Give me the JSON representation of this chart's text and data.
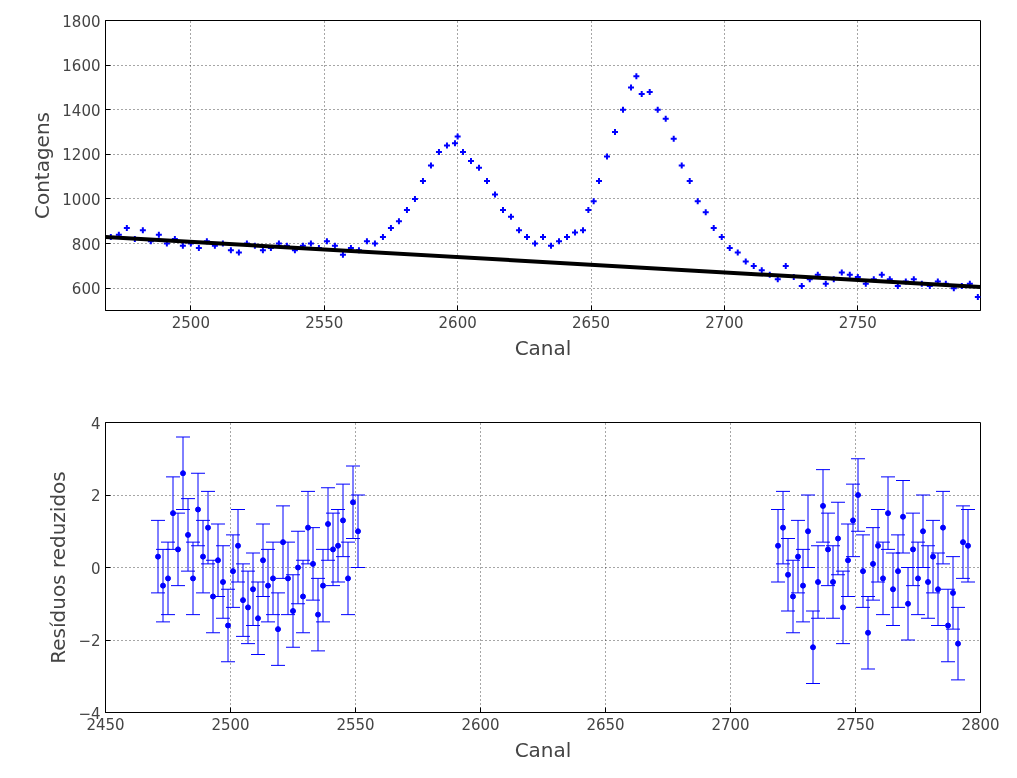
{
  "chart_data": [
    {
      "type": "scatter",
      "xlabel": "Canal",
      "ylabel": "Contagens",
      "xlim": [
        2468,
        2796
      ],
      "ylim": [
        500,
        1800
      ],
      "xticks": [
        2500,
        2550,
        2600,
        2650,
        2700,
        2750
      ],
      "yticks": [
        600,
        800,
        1000,
        1200,
        1400,
        1600,
        1800
      ],
      "grid": true,
      "marker": "cross",
      "series": [
        {
          "color": "#0000ff",
          "x": [
            2470,
            2473,
            2476,
            2479,
            2482,
            2485,
            2488,
            2491,
            2494,
            2497,
            2500,
            2503,
            2506,
            2509,
            2512,
            2515,
            2518,
            2521,
            2524,
            2527,
            2530,
            2533,
            2536,
            2539,
            2542,
            2545,
            2548,
            2551,
            2554,
            2557,
            2560,
            2563,
            2566,
            2569,
            2572,
            2575,
            2578,
            2581,
            2584,
            2587,
            2590,
            2593,
            2596,
            2599,
            2600,
            2602,
            2605,
            2608,
            2611,
            2614,
            2617,
            2620,
            2623,
            2626,
            2629,
            2632,
            2635,
            2638,
            2641,
            2644,
            2647,
            2649,
            2651,
            2653,
            2656,
            2659,
            2662,
            2665,
            2667,
            2669,
            2672,
            2675,
            2678,
            2681,
            2684,
            2687,
            2690,
            2693,
            2696,
            2699,
            2702,
            2705,
            2708,
            2711,
            2714,
            2717,
            2720,
            2723,
            2726,
            2729,
            2732,
            2735,
            2738,
            2741,
            2744,
            2747,
            2750,
            2753,
            2756,
            2759,
            2762,
            2765,
            2768,
            2771,
            2774,
            2777,
            2780,
            2783,
            2786,
            2789,
            2792,
            2795
          ],
          "values": [
            830,
            840,
            870,
            820,
            860,
            810,
            840,
            800,
            820,
            790,
            800,
            780,
            810,
            790,
            800,
            770,
            760,
            800,
            790,
            770,
            780,
            800,
            790,
            770,
            790,
            800,
            780,
            810,
            790,
            750,
            780,
            770,
            810,
            800,
            830,
            870,
            900,
            950,
            1000,
            1080,
            1150,
            1210,
            1240,
            1250,
            1280,
            1210,
            1170,
            1140,
            1080,
            1020,
            950,
            920,
            860,
            830,
            800,
            830,
            790,
            810,
            830,
            850,
            860,
            950,
            990,
            1080,
            1190,
            1300,
            1400,
            1500,
            1550,
            1470,
            1480,
            1400,
            1360,
            1270,
            1150,
            1080,
            990,
            940,
            870,
            830,
            780,
            760,
            720,
            700,
            680,
            660,
            640,
            700,
            650,
            610,
            640,
            660,
            620,
            640,
            670,
            660,
            650,
            620,
            640,
            660,
            640,
            610,
            630,
            640,
            620,
            610,
            630,
            620,
            600,
            610,
            620,
            560
          ]
        },
        {
          "type": "line",
          "marker": "none",
          "color": "#000000",
          "x": [
            2468,
            2796
          ],
          "values": [
            830,
            605
          ]
        }
      ]
    },
    {
      "type": "scatter",
      "xlabel": "Canal",
      "ylabel": "Resíduos reduzidos",
      "xlim": [
        2450,
        2800
      ],
      "ylim": [
        -4,
        4
      ],
      "xticks": [
        2450,
        2500,
        2550,
        2600,
        2650,
        2700,
        2750,
        2800
      ],
      "yticks": [
        -4,
        -2,
        0,
        2,
        4
      ],
      "grid": true,
      "marker": "circle",
      "series": [
        {
          "color": "#0000ff",
          "x": [
            2471,
            2473,
            2475,
            2477,
            2479,
            2481,
            2483,
            2485,
            2487,
            2489,
            2491,
            2493,
            2495,
            2497,
            2499,
            2501,
            2503,
            2505,
            2507,
            2509,
            2511,
            2513,
            2515,
            2517,
            2519,
            2521,
            2523,
            2525,
            2527,
            2529,
            2531,
            2533,
            2535,
            2537,
            2539,
            2541,
            2543,
            2545,
            2547,
            2549,
            2551,
            2719,
            2721,
            2723,
            2725,
            2727,
            2729,
            2731,
            2733,
            2735,
            2737,
            2739,
            2741,
            2743,
            2745,
            2747,
            2749,
            2751,
            2753,
            2755,
            2757,
            2759,
            2761,
            2763,
            2765,
            2767,
            2769,
            2771,
            2773,
            2775,
            2777,
            2779,
            2781,
            2783,
            2785,
            2787,
            2789,
            2791,
            2793,
            2795
          ],
          "values": [
            0.3,
            -0.5,
            -0.3,
            1.5,
            0.5,
            2.6,
            0.9,
            -0.3,
            1.6,
            0.3,
            1.1,
            -0.8,
            0.2,
            -0.4,
            -1.6,
            -0.1,
            0.6,
            -0.9,
            -1.1,
            -0.6,
            -1.4,
            0.2,
            -0.5,
            -0.3,
            -1.7,
            0.7,
            -0.3,
            -1.2,
            0.0,
            -0.8,
            1.1,
            0.1,
            -1.3,
            -0.5,
            1.2,
            0.5,
            0.6,
            1.3,
            -0.3,
            1.8,
            1.0,
            0.6,
            1.1,
            -0.2,
            -0.8,
            0.3,
            -0.5,
            1.0,
            -2.2,
            -0.4,
            1.7,
            0.5,
            -0.4,
            0.8,
            -1.1,
            0.2,
            1.3,
            2.0,
            -0.1,
            -1.8,
            0.1,
            0.6,
            -0.3,
            1.5,
            -0.6,
            -0.1,
            1.4,
            -1.0,
            0.5,
            -0.3,
            1.0,
            -0.4,
            0.3,
            -0.6,
            1.1,
            -1.6,
            -0.7,
            -2.1,
            0.7,
            0.6
          ],
          "errors": [
            1,
            1,
            1,
            1,
            1,
            1,
            1,
            1,
            1,
            1,
            1,
            1,
            1,
            1,
            1,
            1,
            1,
            1,
            1,
            1,
            1,
            1,
            1,
            1,
            1,
            1,
            1,
            1,
            1,
            1,
            1,
            1,
            1,
            1,
            1,
            1,
            1,
            1,
            1,
            1,
            1,
            1,
            1,
            1,
            1,
            1,
            1,
            1,
            1,
            1,
            1,
            1,
            1,
            1,
            1,
            1,
            1,
            1,
            1,
            1,
            1,
            1,
            1,
            1,
            1,
            1,
            1,
            1,
            1,
            1,
            1,
            1,
            1,
            1,
            1,
            1,
            1,
            1,
            1,
            1
          ]
        }
      ]
    }
  ]
}
